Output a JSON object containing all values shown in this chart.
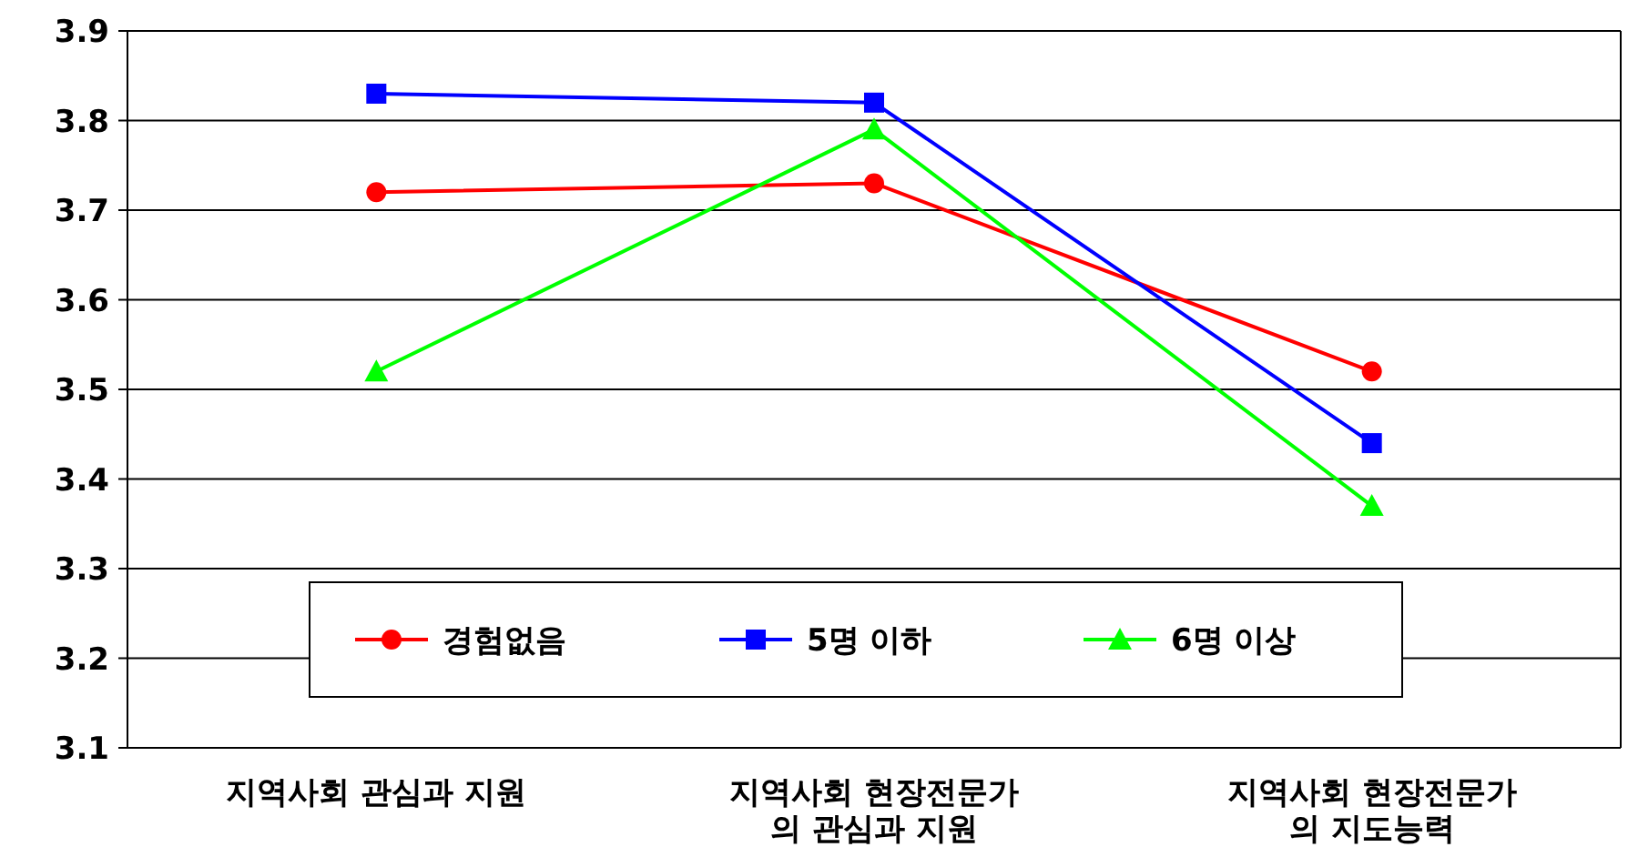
{
  "chart_data": {
    "type": "line",
    "categories": [
      "지역사회 관심과 지원",
      "지역사회 현장전문가\n의 관심과 지원",
      "지역사회 현장전문가\n의 지도능력"
    ],
    "series": [
      {
        "name": "경험없음",
        "color": "#ff0000",
        "marker": "circle",
        "values": [
          3.72,
          3.73,
          3.52
        ]
      },
      {
        "name": "5명 이하",
        "color": "#0000ff",
        "marker": "square",
        "values": [
          3.83,
          3.82,
          3.44
        ]
      },
      {
        "name": "6명 이상",
        "color": "#00ff00",
        "marker": "triangle",
        "values": [
          3.52,
          3.79,
          3.37
        ]
      }
    ],
    "ylim": [
      3.1,
      3.9
    ],
    "yticks": [
      3.1,
      3.2,
      3.3,
      3.4,
      3.5,
      3.6,
      3.7,
      3.8,
      3.9
    ],
    "grid": "y",
    "legend": "bottom"
  }
}
